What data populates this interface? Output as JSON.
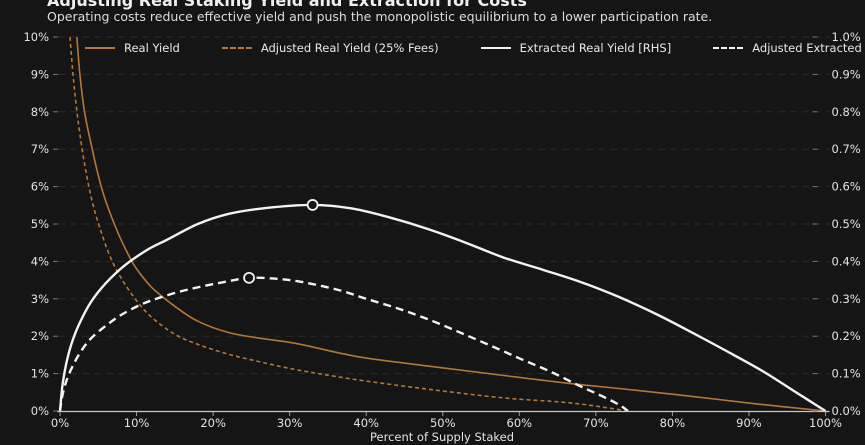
{
  "header": {
    "title": "Adjusting Real Staking Yield and Extraction for Costs",
    "subtitle": "Operating costs reduce effective yield and push the monopolistic equilibrium to a lower participation rate."
  },
  "colors": {
    "background": "#151515",
    "accent_orange": "#b5763a",
    "accent_white": "#f2f2f2",
    "grid": "#2a2a2a",
    "axis_line": "#c8c8c8",
    "tick_text": "#e3e3e3",
    "marker_fill": "#151515"
  },
  "chart_data": {
    "type": "line",
    "title": "Adjusting Real Staking Yield and Extraction for Costs",
    "subtitle": "Operating costs reduce effective yield and push the monopolistic equilibrium to a lower participation rate.",
    "xlabel": "Percent of Supply Staked",
    "grid": "horizontal-dashed",
    "legend_position": "top-inside",
    "x_axis": {
      "tick_values": [
        0,
        10,
        20,
        30,
        40,
        50,
        60,
        70,
        80,
        90,
        100
      ],
      "tick_labels": [
        "0%",
        "10%",
        "20%",
        "30%",
        "40%",
        "50%",
        "60%",
        "70%",
        "80%",
        "90%",
        "100%"
      ],
      "range": [
        0,
        100
      ]
    },
    "left_axis": {
      "tick_values": [
        0,
        1,
        2,
        3,
        4,
        5,
        6,
        7,
        8,
        9,
        10
      ],
      "tick_labels": [
        "0%",
        "1%",
        "2%",
        "3%",
        "4%",
        "5%",
        "6%",
        "7%",
        "8%",
        "9%",
        "10%"
      ],
      "range": [
        0,
        10
      ]
    },
    "right_axis": {
      "tick_values": [
        0,
        0.1,
        0.2,
        0.3,
        0.4,
        0.5,
        0.6,
        0.7,
        0.8,
        0.9,
        1.0
      ],
      "tick_labels": [
        "0.0%",
        "0.1%",
        "0.2%",
        "0.3%",
        "0.4%",
        "0.5%",
        "0.6%",
        "0.7%",
        "0.8%",
        "0.9%",
        "1.0%"
      ],
      "range": [
        0,
        1
      ]
    },
    "series": [
      {
        "name": "Real Yield",
        "color": "#b5763a",
        "dash": "solid",
        "axis": "left",
        "points": [
          [
            2.2,
            10
          ],
          [
            2.6,
            9
          ],
          [
            3.2,
            8
          ],
          [
            4,
            7.2
          ],
          [
            5,
            6.3
          ],
          [
            6,
            5.6
          ],
          [
            7.5,
            4.8
          ],
          [
            9,
            4.15
          ],
          [
            10,
            3.8
          ],
          [
            12,
            3.3
          ],
          [
            15,
            2.8
          ],
          [
            18,
            2.4
          ],
          [
            22,
            2.1
          ],
          [
            26,
            1.95
          ],
          [
            31,
            1.8
          ],
          [
            39,
            1.45
          ],
          [
            49,
            1.18
          ],
          [
            58,
            0.95
          ],
          [
            66,
            0.75
          ],
          [
            75,
            0.56
          ],
          [
            83,
            0.38
          ],
          [
            91,
            0.19
          ],
          [
            100,
            0
          ]
        ]
      },
      {
        "name": "Adjusted Real Yield (25% Fees)",
        "color": "#b5763a",
        "dash": "dashed",
        "axis": "left",
        "points": [
          [
            1.3,
            10
          ],
          [
            1.7,
            9
          ],
          [
            2.1,
            8.2
          ],
          [
            2.6,
            7.4
          ],
          [
            3.3,
            6.5
          ],
          [
            4.2,
            5.6
          ],
          [
            5.2,
            4.9
          ],
          [
            6.5,
            4.15
          ],
          [
            8,
            3.55
          ],
          [
            10,
            2.95
          ],
          [
            12,
            2.5
          ],
          [
            15,
            2.05
          ],
          [
            18,
            1.78
          ],
          [
            22,
            1.52
          ],
          [
            26,
            1.32
          ],
          [
            31,
            1.1
          ],
          [
            39,
            0.83
          ],
          [
            49,
            0.56
          ],
          [
            58,
            0.35
          ],
          [
            66,
            0.23
          ],
          [
            70,
            0.13
          ],
          [
            74.2,
            0
          ]
        ]
      },
      {
        "name": "Extracted Real Yield [RHS]",
        "color": "#f2f2f2",
        "dash": "solid",
        "axis": "right",
        "marker": [
          33,
          0.551
        ],
        "points": [
          [
            0,
            0
          ],
          [
            0.3,
            0.065
          ],
          [
            0.8,
            0.125
          ],
          [
            1.5,
            0.18
          ],
          [
            2.5,
            0.232
          ],
          [
            4,
            0.29
          ],
          [
            6,
            0.342
          ],
          [
            8.5,
            0.39
          ],
          [
            11.5,
            0.432
          ],
          [
            14,
            0.458
          ],
          [
            18,
            0.5
          ],
          [
            22,
            0.527
          ],
          [
            27,
            0.543
          ],
          [
            33,
            0.551
          ],
          [
            38,
            0.542
          ],
          [
            43,
            0.518
          ],
          [
            48,
            0.487
          ],
          [
            53,
            0.45
          ],
          [
            58,
            0.41
          ],
          [
            63,
            0.378
          ],
          [
            68,
            0.345
          ],
          [
            73,
            0.305
          ],
          [
            78,
            0.258
          ],
          [
            83,
            0.205
          ],
          [
            88,
            0.15
          ],
          [
            92,
            0.104
          ],
          [
            96,
            0.052
          ],
          [
            100,
            0
          ]
        ]
      },
      {
        "name": "Adjusted Extracted Real Yield [RHS]",
        "color": "#f2f2f2",
        "dash": "dashed",
        "axis": "right",
        "marker": [
          24.7,
          0.356
        ],
        "points": [
          [
            0,
            0
          ],
          [
            0.4,
            0.05
          ],
          [
            1.2,
            0.1
          ],
          [
            2.5,
            0.152
          ],
          [
            4,
            0.193
          ],
          [
            6,
            0.228
          ],
          [
            8,
            0.257
          ],
          [
            10.5,
            0.284
          ],
          [
            13,
            0.303
          ],
          [
            16,
            0.321
          ],
          [
            19,
            0.335
          ],
          [
            22,
            0.347
          ],
          [
            24.7,
            0.356
          ],
          [
            28,
            0.354
          ],
          [
            31,
            0.347
          ],
          [
            34,
            0.335
          ],
          [
            37,
            0.32
          ],
          [
            40,
            0.3
          ],
          [
            44,
            0.275
          ],
          [
            48,
            0.246
          ],
          [
            52,
            0.212
          ],
          [
            56,
            0.177
          ],
          [
            60,
            0.141
          ],
          [
            64,
            0.106
          ],
          [
            68,
            0.066
          ],
          [
            71,
            0.038
          ],
          [
            73,
            0.017
          ],
          [
            74.2,
            0
          ]
        ]
      }
    ]
  }
}
